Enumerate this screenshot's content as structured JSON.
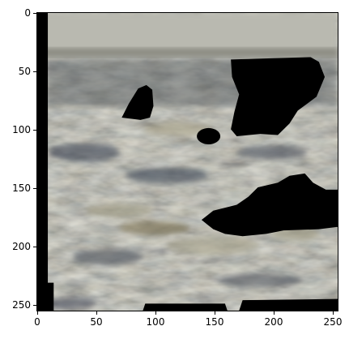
{
  "axes": {
    "x_ticks": [
      "0",
      "50",
      "100",
      "150",
      "200",
      "250"
    ],
    "y_ticks": [
      "0",
      "50",
      "100",
      "150",
      "200",
      "250"
    ],
    "xlim": [
      0,
      256
    ],
    "ylim": [
      256,
      0
    ]
  },
  "image": {
    "description_icon": "image-icon",
    "colors": {
      "sky": "#b8b8ae",
      "water_dark": "#4a4e52",
      "water_mid": "#6b6c62",
      "water_light": "#9a9a8c",
      "olive": "#6e6848",
      "mask": "#000000"
    }
  }
}
